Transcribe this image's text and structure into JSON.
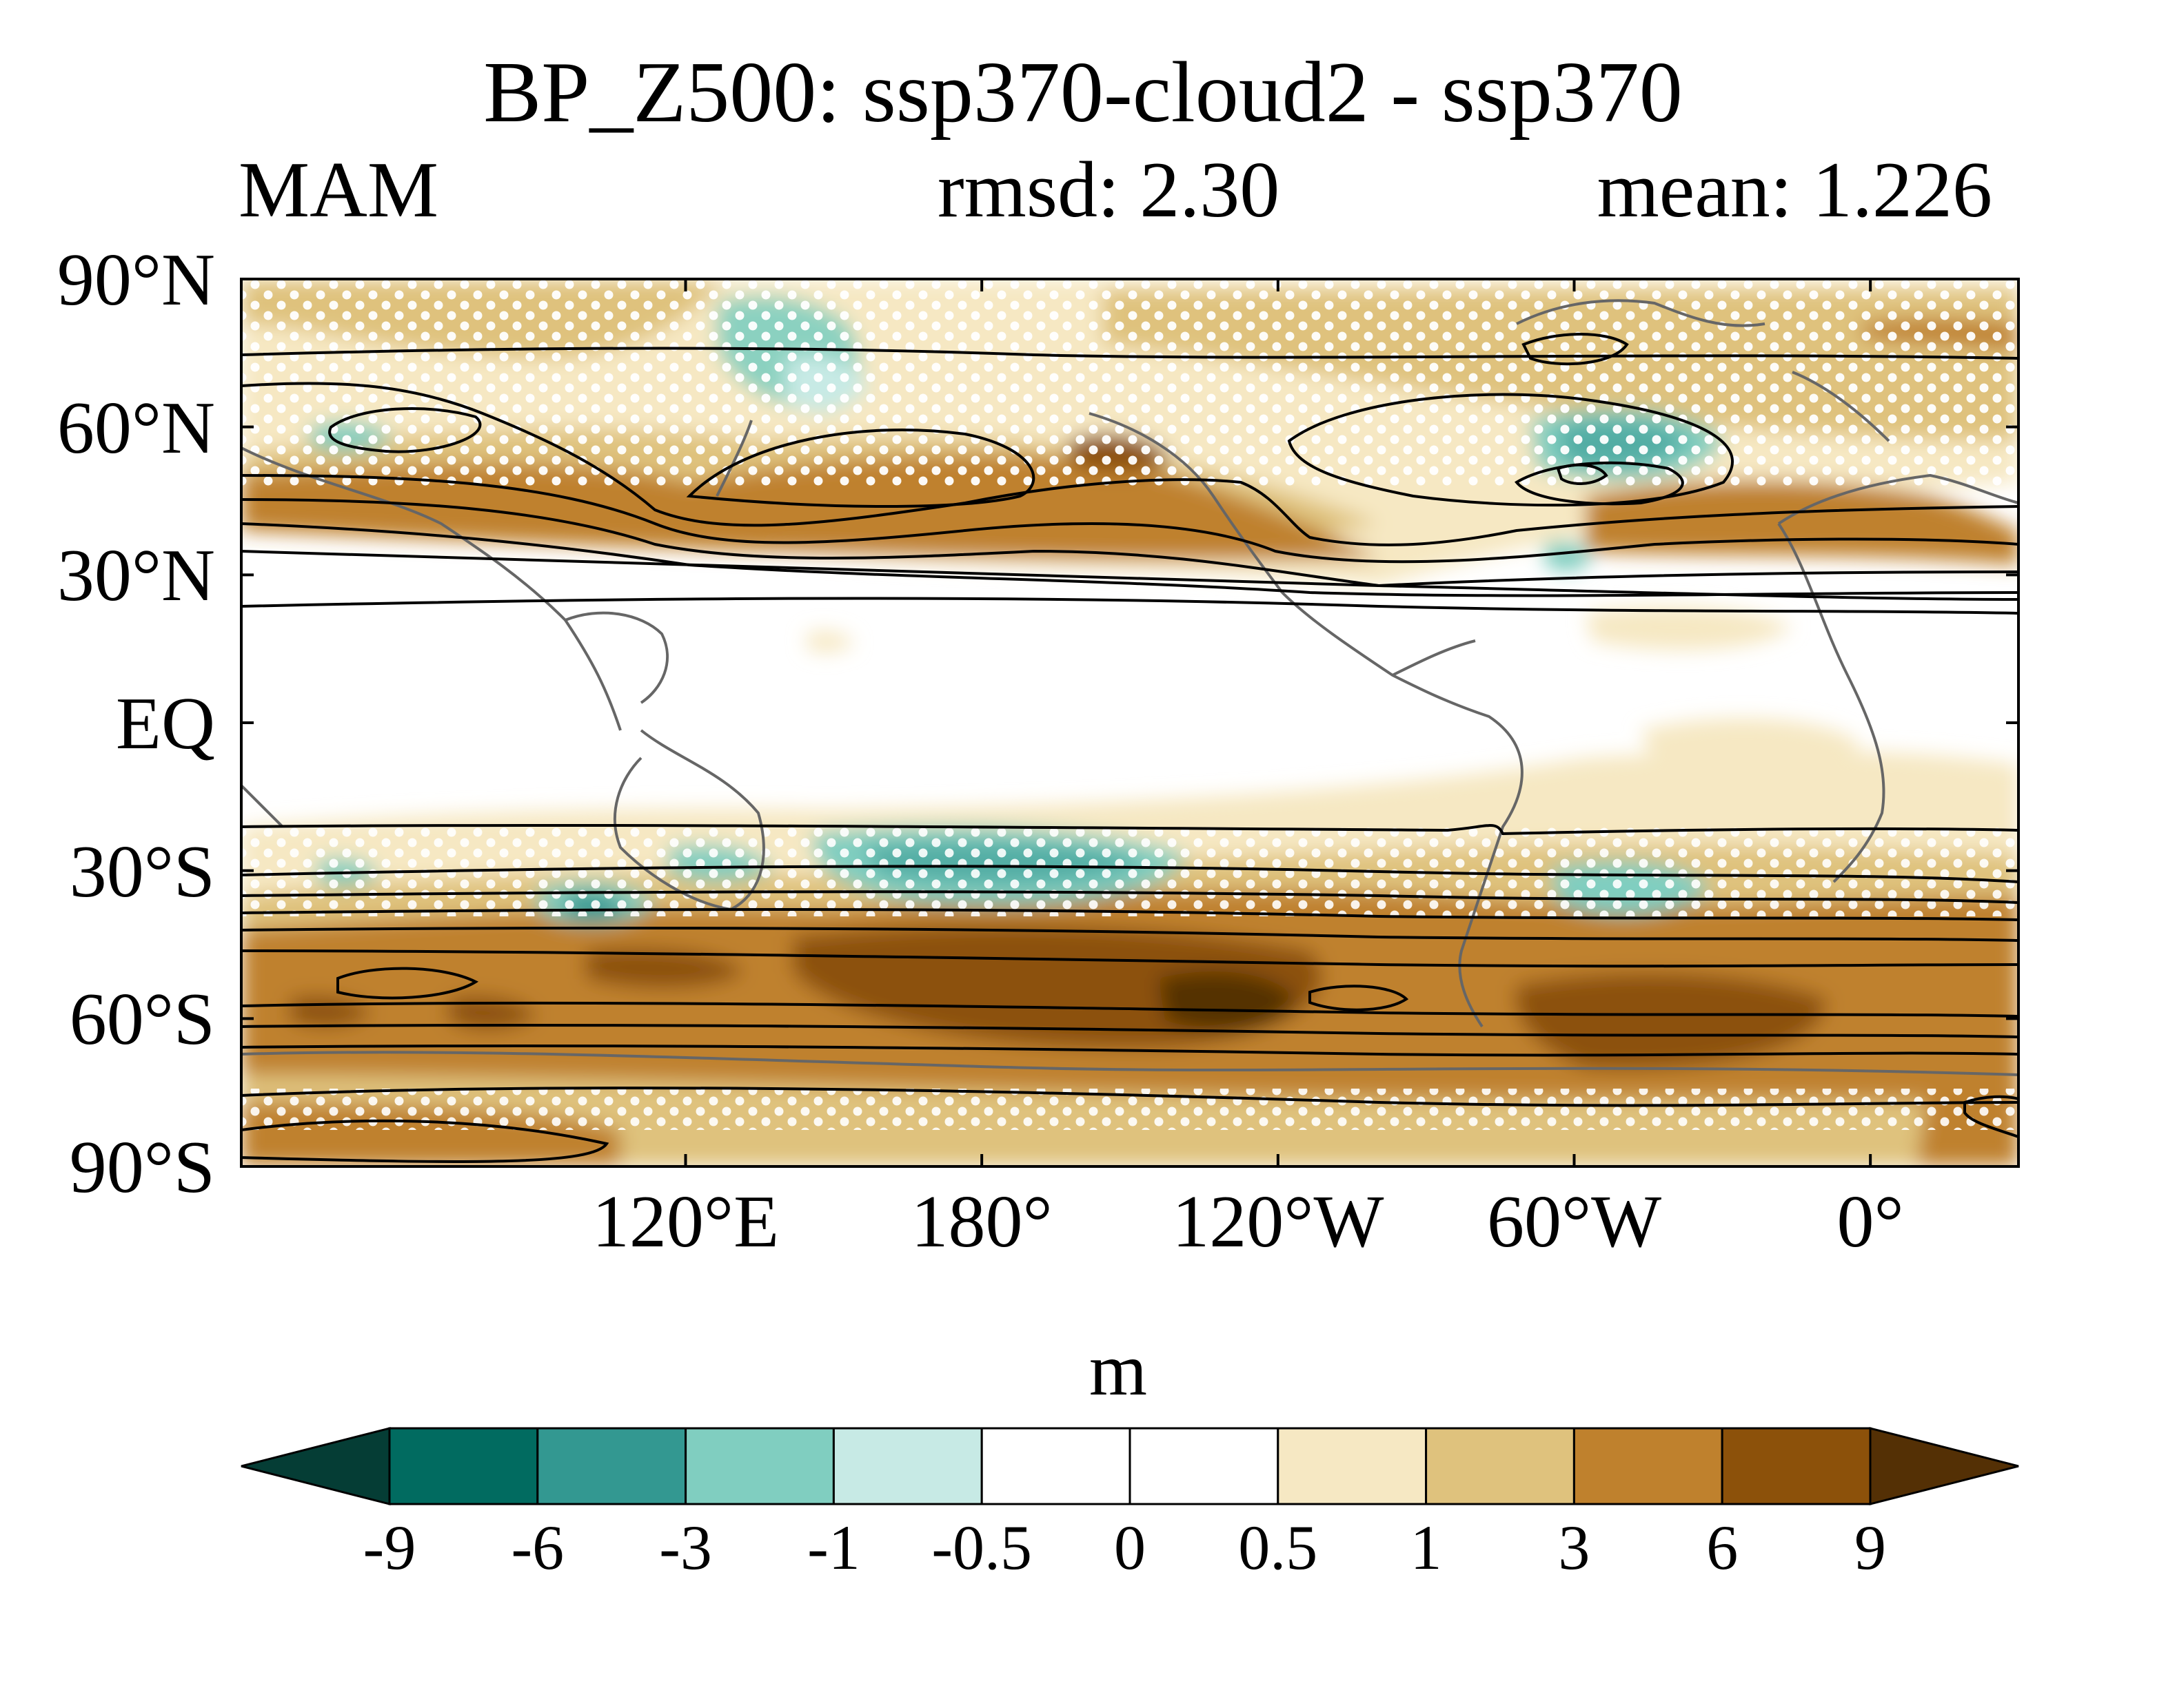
{
  "title": "BP_Z500: ssp370-cloud2 - ssp370",
  "season": "MAM",
  "rmsd_text": "rmsd: 2.30",
  "mean_text": "mean: 1.226",
  "map": {
    "projection": "cylindrical equidistant",
    "lon_range": [
      30,
      390
    ],
    "lat_range": [
      -90,
      90
    ],
    "lat_ticks": [
      {
        "value": 90,
        "label": "90°N"
      },
      {
        "value": 60,
        "label": "60°N"
      },
      {
        "value": 30,
        "label": "30°N"
      },
      {
        "value": 0,
        "label": "EQ"
      },
      {
        "value": -30,
        "label": "30°S"
      },
      {
        "value": -60,
        "label": "60°S"
      },
      {
        "value": -90,
        "label": "90°S"
      }
    ],
    "lon_ticks": [
      {
        "value": 120,
        "label": "120°E"
      },
      {
        "value": 180,
        "label": "180°"
      },
      {
        "value": 240,
        "label": "120°W"
      },
      {
        "value": 300,
        "label": "60°W"
      },
      {
        "value": 360,
        "label": "0°"
      }
    ],
    "stippling": "white dots mark statistically significant differences",
    "contours": "black lines show the climatological field"
  },
  "colorbar": {
    "unit": "m",
    "levels": [
      "-9",
      "-6",
      "-3",
      "-1",
      "-0.5",
      "0",
      "0.5",
      "1",
      "3",
      "6",
      "9"
    ],
    "colors": [
      "#053d35",
      "#016b60",
      "#339891",
      "#80cec0",
      "#c7eae5",
      "#ffffff",
      "#ffffff",
      "#f6e8c3",
      "#dfc27d",
      "#bf812d",
      "#8c510a",
      "#543005"
    ]
  }
}
